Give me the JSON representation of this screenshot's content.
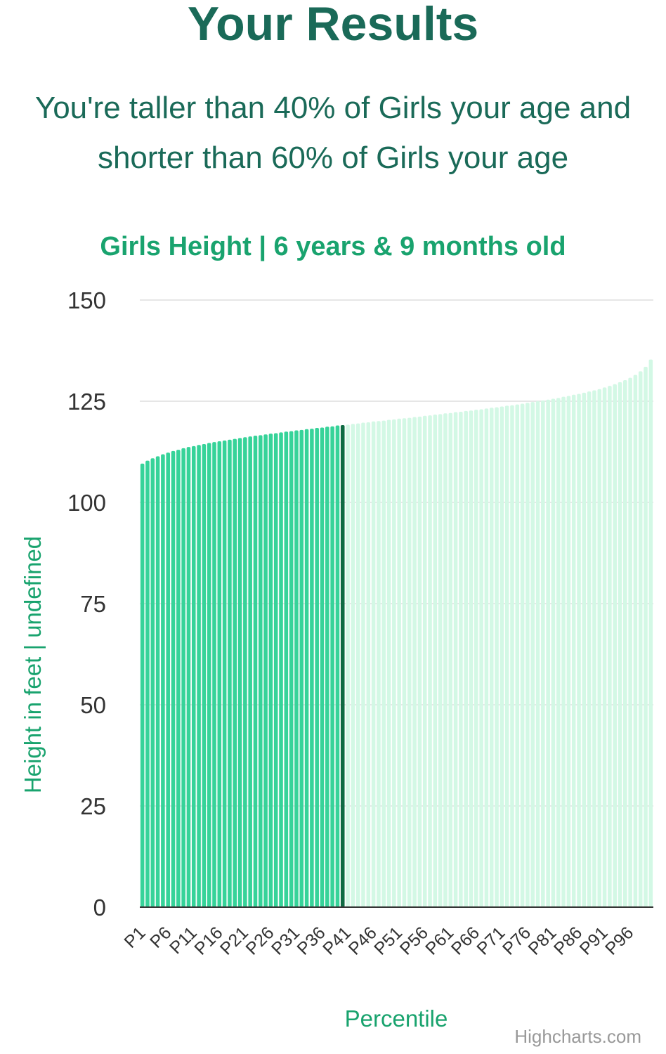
{
  "header": {
    "title": "Your Results",
    "summary_line1": "You're taller than 40% of Girls your age and",
    "summary_line2": "shorter than 60% of Girls your age"
  },
  "chart_data": {
    "type": "bar",
    "title": "Girls Height | 6 years & 9 months old",
    "xlabel": "Percentile",
    "ylabel": "Height in feet | undefined",
    "ylim": [
      0,
      150
    ],
    "yticks": [
      0,
      25,
      50,
      75,
      100,
      125,
      150
    ],
    "grid": true,
    "categories": [
      "P1",
      "P2",
      "P3",
      "P4",
      "P5",
      "P6",
      "P7",
      "P8",
      "P9",
      "P10",
      "P11",
      "P12",
      "P13",
      "P14",
      "P15",
      "P16",
      "P17",
      "P18",
      "P19",
      "P20",
      "P21",
      "P22",
      "P23",
      "P24",
      "P25",
      "P26",
      "P27",
      "P28",
      "P29",
      "P30",
      "P31",
      "P32",
      "P33",
      "P34",
      "P35",
      "P36",
      "P37",
      "P38",
      "P39",
      "P40",
      "P41",
      "P42",
      "P43",
      "P44",
      "P45",
      "P46",
      "P47",
      "P48",
      "P49",
      "P50",
      "P51",
      "P52",
      "P53",
      "P54",
      "P55",
      "P56",
      "P57",
      "P58",
      "P59",
      "P60",
      "P61",
      "P62",
      "P63",
      "P64",
      "P65",
      "P66",
      "P67",
      "P68",
      "P69",
      "P70",
      "P71",
      "P72",
      "P73",
      "P74",
      "P75",
      "P76",
      "P77",
      "P78",
      "P79",
      "P80",
      "P81",
      "P82",
      "P83",
      "P84",
      "P85",
      "P86",
      "P87",
      "P88",
      "P89",
      "P90",
      "P91",
      "P92",
      "P93",
      "P94",
      "P95",
      "P96",
      "P97",
      "P98",
      "P99",
      "P100"
    ],
    "visible_tick_labels": [
      "P1",
      "P6",
      "P11",
      "P16",
      "P21",
      "P26",
      "P31",
      "P36",
      "P41",
      "P46",
      "P51",
      "P56",
      "P61",
      "P66",
      "P71",
      "P76",
      "P81",
      "P86",
      "P91",
      "P96"
    ],
    "values": [
      109.6,
      110.3,
      110.9,
      111.4,
      111.9,
      112.3,
      112.7,
      113.0,
      113.4,
      113.7,
      113.9,
      114.2,
      114.4,
      114.7,
      114.9,
      115.1,
      115.3,
      115.5,
      115.7,
      115.9,
      116.1,
      116.3,
      116.5,
      116.6,
      116.8,
      117.0,
      117.1,
      117.3,
      117.5,
      117.6,
      117.8,
      117.9,
      118.1,
      118.2,
      118.4,
      118.5,
      118.7,
      118.8,
      119.0,
      119.1,
      119.2,
      119.4,
      119.5,
      119.7,
      119.8,
      120.0,
      120.1,
      120.2,
      120.4,
      120.5,
      120.7,
      120.8,
      120.9,
      121.1,
      121.2,
      121.4,
      121.5,
      121.7,
      121.8,
      122.0,
      122.1,
      122.3,
      122.4,
      122.6,
      122.7,
      122.9,
      123.0,
      123.2,
      123.4,
      123.5,
      123.7,
      123.9,
      124.0,
      124.2,
      124.4,
      124.6,
      124.8,
      125.0,
      125.2,
      125.4,
      125.6,
      125.8,
      126.1,
      126.3,
      126.6,
      126.8,
      127.1,
      127.4,
      127.7,
      128.0,
      128.4,
      128.8,
      129.2,
      129.7,
      130.2,
      130.8,
      131.5,
      132.4,
      133.5,
      135.3
    ],
    "highlight_threshold_percentile": 40,
    "colors": {
      "below": "#36d399",
      "above": "#d3f8e5",
      "current": "#0f6b43",
      "grid": "#e6e6e6",
      "axis": "#333333"
    },
    "credits": "Highcharts.com"
  }
}
